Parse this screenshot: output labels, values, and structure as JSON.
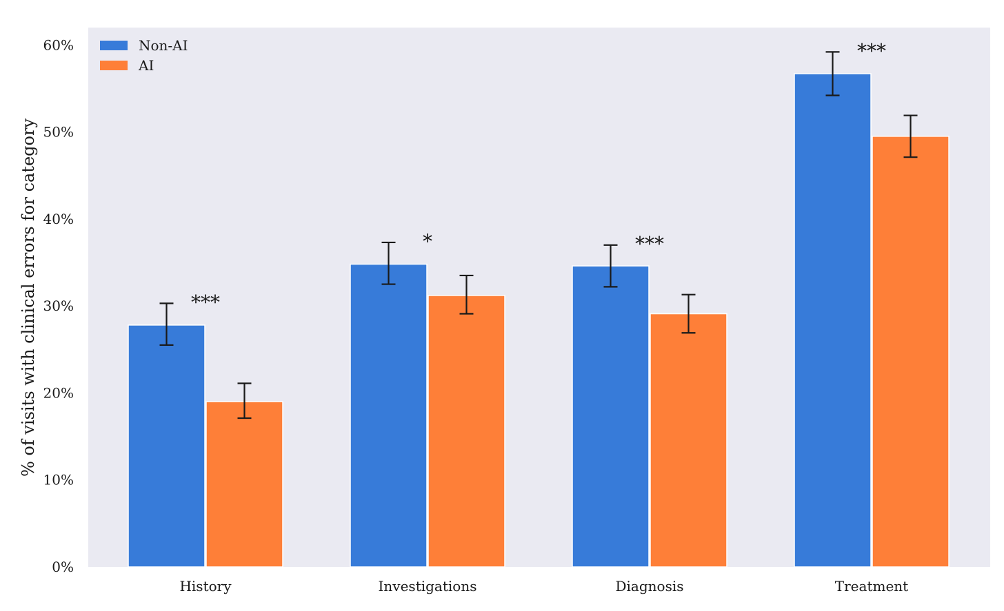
{
  "chart_data": {
    "type": "bar",
    "title": "",
    "xlabel": "",
    "ylabel": "% of visits with clinical errors for category",
    "categories": [
      "History",
      "Investigations",
      "Diagnosis",
      "Treatment"
    ],
    "ylim": [
      0,
      62
    ],
    "yticks": [
      0,
      10,
      20,
      30,
      40,
      50,
      60
    ],
    "ytick_labels": [
      "0%",
      "10%",
      "20%",
      "30%",
      "40%",
      "50%",
      "60%"
    ],
    "grid": false,
    "legend_position": "top-left",
    "series": [
      {
        "name": "Non-AI",
        "color": "#377bd9",
        "values": [
          27.8,
          34.8,
          34.6,
          56.7
        ],
        "error_low": [
          25.5,
          32.5,
          32.2,
          54.2
        ],
        "error_high": [
          30.3,
          37.3,
          37.0,
          59.2
        ]
      },
      {
        "name": "AI",
        "color": "#fe7f38",
        "values": [
          19.0,
          31.2,
          29.1,
          49.5
        ],
        "error_low": [
          17.1,
          29.1,
          26.9,
          47.1
        ],
        "error_high": [
          21.1,
          33.5,
          31.3,
          51.9
        ]
      }
    ],
    "significance": [
      "***",
      "*",
      "***",
      "***"
    ],
    "plot_background": "#eaeaf2",
    "errorbar_color": "#1a1a1a"
  }
}
